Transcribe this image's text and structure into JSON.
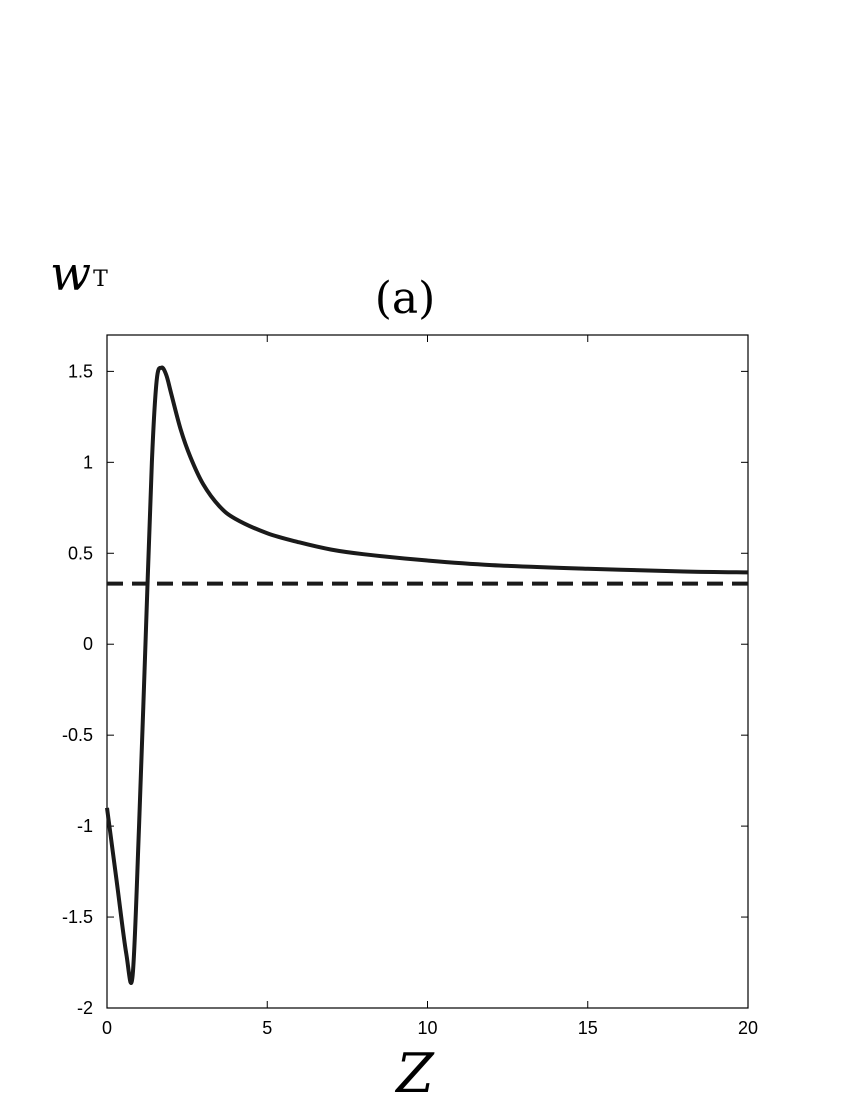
{
  "chart_data": {
    "type": "line",
    "title": "(a)",
    "xlabel": "Z",
    "ylabel": "w",
    "ylabel_subscript": "T",
    "xlim": [
      0,
      20
    ],
    "ylim": [
      -2,
      1.7
    ],
    "xticks": [
      0,
      5,
      10,
      15,
      20
    ],
    "yticks": [
      -2,
      -1.5,
      -1,
      -0.5,
      0,
      0.5,
      1,
      1.5
    ],
    "xtick_labels": [
      "0",
      "5",
      "10",
      "15",
      "20"
    ],
    "ytick_labels": [
      "-2",
      "-1.5",
      "-1",
      "-0.5",
      "0",
      "0.5",
      "1",
      "1.5"
    ],
    "grid": false,
    "series": [
      {
        "style": "solid",
        "color": "#1a1a1a",
        "x": [
          0,
          0.3,
          0.6,
          0.8,
          1.0,
          1.2,
          1.4,
          1.55,
          1.7,
          1.85,
          2.0,
          2.3,
          2.6,
          3.0,
          3.5,
          4.0,
          5.0,
          6.0,
          7.0,
          8.0,
          10.0,
          12.0,
          15.0,
          18.0,
          20.0
        ],
        "y": [
          -0.9,
          -1.3,
          -1.7,
          -1.82,
          -1.0,
          0.0,
          1.0,
          1.45,
          1.52,
          1.48,
          1.38,
          1.18,
          1.03,
          0.88,
          0.76,
          0.69,
          0.61,
          0.56,
          0.52,
          0.495,
          0.46,
          0.435,
          0.415,
          0.4,
          0.395
        ]
      },
      {
        "style": "dashed",
        "color": "#1a1a1a",
        "x": [
          0,
          20
        ],
        "y": [
          0.333,
          0.333
        ]
      }
    ]
  }
}
